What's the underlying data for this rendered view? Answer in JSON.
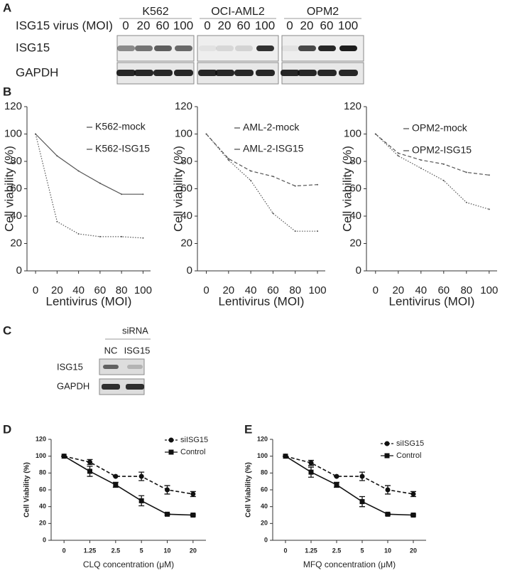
{
  "figure": {
    "panel_labels": [
      "A",
      "B",
      "C",
      "D",
      "E"
    ],
    "blot_a": {
      "row_header": "ISG15 virus (MOI)",
      "cell_lines": [
        "K562",
        "OCI-AML2",
        "OPM2"
      ],
      "lanes": [
        [
          "0",
          "20",
          "60",
          "100"
        ],
        [
          "0",
          "20",
          "60",
          "100"
        ],
        [
          "0",
          "20",
          "60",
          "100"
        ]
      ],
      "rows": [
        "ISG15",
        "GAPDH"
      ]
    },
    "blot_c": {
      "header": "siRNA",
      "lanes": [
        "NC",
        "ISG15"
      ],
      "rows": [
        "ISG15",
        "GAPDH"
      ]
    }
  },
  "chart_data": [
    {
      "type": "line",
      "xlabel": "Lentivirus (MOI)",
      "ylabel": "Cell viability (%)",
      "x": [
        0,
        20,
        40,
        60,
        80,
        100
      ],
      "xlim": [
        -8,
        107
      ],
      "xticks": [
        0,
        20,
        40,
        60,
        80,
        100
      ],
      "ylim": [
        0,
        120
      ],
      "yticks": [
        0,
        20,
        40,
        60,
        80,
        100,
        120
      ],
      "series": [
        {
          "name": "K562-mock",
          "color": "#555555",
          "style": "solid",
          "values": [
            100,
            84,
            73,
            64,
            56,
            56
          ]
        },
        {
          "name": "K562-ISG15",
          "color": "#555555",
          "style": "dotted",
          "values": [
            100,
            36,
            27,
            25,
            25,
            24
          ]
        }
      ]
    },
    {
      "type": "line",
      "xlabel": "Lentivirus (MOI)",
      "ylabel": "Cell viability (%)",
      "x": [
        0,
        20,
        40,
        60,
        80,
        100
      ],
      "xlim": [
        -8,
        107
      ],
      "xticks": [
        0,
        20,
        40,
        60,
        80,
        100
      ],
      "ylim": [
        0,
        120
      ],
      "yticks": [
        0,
        20,
        40,
        60,
        80,
        100,
        120
      ],
      "series": [
        {
          "name": "AML-2-mock",
          "color": "#555555",
          "style": "dashed",
          "values": [
            100,
            82,
            73,
            69,
            62,
            63
          ]
        },
        {
          "name": "AML-2-ISG15",
          "color": "#555555",
          "style": "dotted",
          "values": [
            100,
            81,
            66,
            42,
            29,
            29
          ]
        }
      ]
    },
    {
      "type": "line",
      "xlabel": "Lentivirus (MOI)",
      "ylabel": "Cell viability (%)",
      "x": [
        0,
        20,
        40,
        60,
        80,
        100
      ],
      "xlim": [
        -8,
        107
      ],
      "xticks": [
        0,
        20,
        40,
        60,
        80,
        100
      ],
      "ylim": [
        0,
        120
      ],
      "yticks": [
        0,
        20,
        40,
        60,
        80,
        100,
        120
      ],
      "series": [
        {
          "name": "OPM2-mock",
          "color": "#555555",
          "style": "dashed",
          "values": [
            100,
            86,
            81,
            78,
            72,
            70
          ]
        },
        {
          "name": "OPM2-ISG15",
          "color": "#555555",
          "style": "dotted",
          "values": [
            100,
            84,
            75,
            66,
            50,
            45
          ]
        }
      ]
    },
    {
      "type": "line",
      "xlabel": "CLQ concentration (μM)",
      "ylabel": "Cell Viability (%)",
      "categories": [
        "0",
        "1.25",
        "2.5",
        "5",
        "10",
        "20"
      ],
      "ylim": [
        0,
        120
      ],
      "yticks": [
        0,
        20,
        40,
        60,
        80,
        100,
        120
      ],
      "series": [
        {
          "name": "siISG15",
          "color": "#111111",
          "style": "dashed",
          "marker": "circle",
          "values": [
            100,
            93,
            76,
            76,
            60,
            55
          ],
          "errors": [
            0,
            3,
            0,
            5,
            5,
            3
          ]
        },
        {
          "name": "Control",
          "color": "#111111",
          "style": "solid",
          "marker": "square",
          "values": [
            100,
            82,
            66,
            47,
            31,
            30
          ],
          "errors": [
            0,
            6,
            3,
            6,
            1,
            1
          ]
        }
      ]
    },
    {
      "type": "line",
      "xlabel": "MFQ concentration (μM)",
      "ylabel": "Cell Viability (%)",
      "categories": [
        "0",
        "1.25",
        "2.5",
        "5",
        "10",
        "20"
      ],
      "ylim": [
        0,
        120
      ],
      "yticks": [
        0,
        20,
        40,
        60,
        80,
        100,
        120
      ],
      "series": [
        {
          "name": "siISG15",
          "color": "#111111",
          "style": "dashed",
          "marker": "circle",
          "values": [
            100,
            92,
            76,
            76,
            60,
            55
          ],
          "errors": [
            0,
            3,
            0,
            5,
            5,
            3
          ]
        },
        {
          "name": "Control",
          "color": "#111111",
          "style": "solid",
          "marker": "square",
          "values": [
            100,
            81,
            66,
            46,
            31,
            30
          ],
          "errors": [
            0,
            6,
            3,
            6,
            1,
            1
          ]
        }
      ]
    }
  ]
}
